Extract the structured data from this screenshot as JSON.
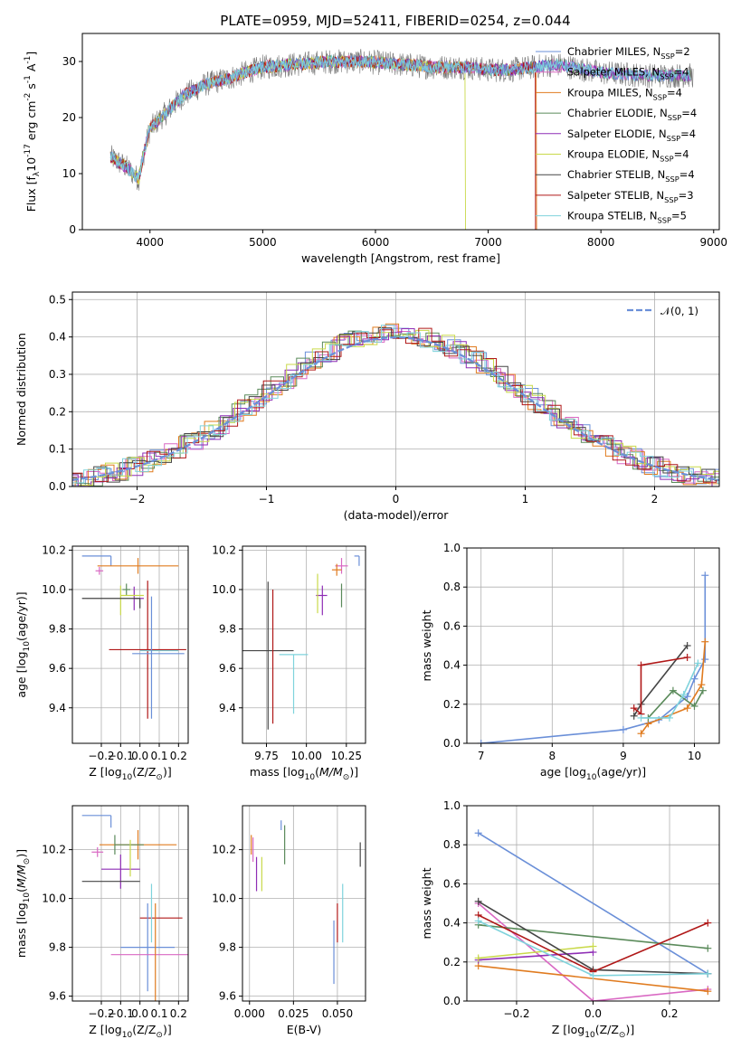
{
  "colors": [
    "#6a8fd8",
    "#d968c3",
    "#e07b1f",
    "#5a8a5a",
    "#8e2db5",
    "#c9d94a",
    "#454545",
    "#b01818",
    "#7fd3dc"
  ],
  "chart_data": [
    {
      "id": "spectrum",
      "type": "line",
      "title": "PLATE=0959, MJD=52411, FIBERID=0254, z=0.044",
      "xlabel": "wavelength [Angstrom, rest frame]",
      "ylabel": "Flux [f$_\\lambda$10$^{-17}$ erg cm$^{-2}$ s$^{-1}$ A$^{-1}$]",
      "xlim": [
        3400,
        9050
      ],
      "ylim": [
        0,
        35
      ],
      "xticks": [
        "4000",
        "5000",
        "6000",
        "7000",
        "8000",
        "9000"
      ],
      "yticks": [
        "0",
        "10",
        "20",
        "30"
      ],
      "continuum": {
        "x": [
          3650,
          3800,
          3900,
          3950,
          4000,
          4150,
          4300,
          4500,
          4700,
          5000,
          5300,
          5600,
          5900,
          6200,
          6500,
          6800,
          7000,
          7200,
          7400,
          7600,
          8000,
          8400,
          8800
        ],
        "y": [
          13,
          11,
          9,
          14,
          18,
          21,
          24,
          26,
          27,
          29,
          29.5,
          30,
          30,
          29.5,
          29,
          29,
          28.5,
          28.5,
          29,
          29.5,
          28,
          27.5,
          27.5
        ]
      },
      "legend": [
        "Chabrier MILES, N$_{SSP}$=2",
        "Salpeter MILES, N$_{SSP}$=4",
        "Kroupa MILES, N$_{SSP}$=4",
        "Chabrier ELODIE, N$_{SSP}$=4",
        "Salpeter ELODIE, N$_{SSP}$=4",
        "Kroupa ELODIE, N$_{SSP}$=4",
        "Chabrier STELIB, N$_{SSP}$=4",
        "Salpeter STELIB, N$_{SSP}$=3",
        "Kroupa STELIB, N$_{SSP}$=5"
      ],
      "legend_position": "upper right"
    },
    {
      "id": "residual-histogram",
      "type": "histogram",
      "xlabel": "(data-model)/error",
      "ylabel": "Normed distribution",
      "xlim": [
        -2.5,
        2.5
      ],
      "ylim": [
        0,
        0.52
      ],
      "xticks": [
        "−2",
        "−1",
        "0",
        "1",
        "2"
      ],
      "yticks": [
        "0.0",
        "0.1",
        "0.2",
        "0.3",
        "0.4",
        "0.5"
      ],
      "bin_width": 0.1,
      "reference_curve_label": "$\\mathcal{N}(0, 1)$",
      "legend_position": "upper right",
      "grid": true
    },
    {
      "id": "age-vs-Z",
      "type": "errorbar",
      "xlabel": "Z [log$_{10}$(Z/Z$_\\odot$)]",
      "ylabel": "age  [log$_{10}$($age/yr$)]",
      "xlim": [
        -0.35,
        0.25
      ],
      "ylim": [
        9.22,
        10.22
      ],
      "xticks": [
        "−0.2",
        "−0.1",
        "0.0",
        "0.1",
        "0.2"
      ],
      "yticks": [
        "9.4",
        "9.6",
        "9.8",
        "10.0",
        "10.2"
      ],
      "grid": true,
      "points": [
        {
          "x": -0.15,
          "y": 10.17,
          "xerr": [
            0.15,
            0.0
          ],
          "yerr": [
            0.05,
            0.0
          ]
        },
        {
          "x": -0.21,
          "y": 10.095,
          "xerr": [
            0.02,
            0.02
          ],
          "yerr": [
            0.02,
            0.02
          ]
        },
        {
          "x": -0.01,
          "y": 10.12,
          "xerr": [
            0.21,
            0.21
          ],
          "yerr": [
            0.04,
            0.04
          ]
        },
        {
          "x": -0.07,
          "y": 10.0,
          "xerr": [
            0.02,
            0.02
          ],
          "yerr": [
            0.03,
            0.03
          ]
        },
        {
          "x": -0.03,
          "y": 9.955,
          "xerr": [
            0.0,
            0.05
          ],
          "yerr": [
            0.06,
            0.06
          ]
        },
        {
          "x": -0.1,
          "y": 9.97,
          "xerr": [
            0.0,
            0.12
          ],
          "yerr": [
            0.1,
            0.05
          ]
        },
        {
          "x": 0.0,
          "y": 9.955,
          "xerr": [
            0.3,
            0.0
          ],
          "yerr": [
            0.05,
            0.0
          ]
        },
        {
          "x": 0.04,
          "y": 9.695,
          "xerr": [
            0.2,
            0.2
          ],
          "yerr": [
            0.35,
            0.35
          ]
        },
        {
          "x": 0.1,
          "y": 9.69,
          "xerr": [
            0.1,
            0.1
          ],
          "yerr": [
            0.0,
            0.0
          ]
        },
        {
          "x": 0.06,
          "y": 9.675,
          "xerr": [
            0.1,
            0.17
          ],
          "yerr": [
            0.33,
            0.29
          ]
        }
      ]
    },
    {
      "id": "age-vs-mass",
      "type": "errorbar",
      "xlabel": "mass [log$_{10}$($M/M_\\odot$)]",
      "ylabel": "",
      "xlim": [
        9.6,
        10.37
      ],
      "ylim": [
        9.22,
        10.22
      ],
      "xticks": [
        "9.75",
        "10.00",
        "10.25"
      ],
      "yticks": [
        "9.4",
        "9.6",
        "9.8",
        "10.0",
        "10.2"
      ],
      "grid": true,
      "points": [
        {
          "x": 10.33,
          "y": 10.17,
          "xerr": [
            0.03,
            0.0
          ],
          "yerr": [
            0.05,
            0.0
          ]
        },
        {
          "x": 10.22,
          "y": 10.12,
          "xerr": [
            0.04,
            0.04
          ],
          "yerr": [
            0.04,
            0.04
          ]
        },
        {
          "x": 10.19,
          "y": 10.1,
          "xerr": [
            0.03,
            0.03
          ],
          "yerr": [
            0.03,
            0.03
          ]
        },
        {
          "x": 10.22,
          "y": 9.97,
          "xerr": [
            0.0,
            0.0
          ],
          "yerr": [
            0.06,
            0.06
          ]
        },
        {
          "x": 10.1,
          "y": 9.97,
          "xerr": [
            0.04,
            0.03
          ],
          "yerr": [
            0.1,
            0.05
          ]
        },
        {
          "x": 10.07,
          "y": 9.96,
          "xerr": [
            0.0,
            0.0
          ],
          "yerr": [
            0.08,
            0.12
          ]
        },
        {
          "x": 9.76,
          "y": 9.69,
          "xerr": [
            0.16,
            0.16
          ],
          "yerr": [
            0.4,
            0.35
          ]
        },
        {
          "x": 9.79,
          "y": 9.7,
          "xerr": [
            0.0,
            0.0
          ],
          "yerr": [
            0.38,
            0.3
          ]
        },
        {
          "x": 9.92,
          "y": 9.67,
          "xerr": [
            0.09,
            0.09
          ],
          "yerr": [
            0.3,
            0.0
          ]
        }
      ]
    },
    {
      "id": "mass-weight-vs-age",
      "type": "line",
      "xlabel": "age  [log$_{10}$($age/yr$)]",
      "ylabel": "mass weight",
      "xlim": [
        6.8,
        10.35
      ],
      "ylim": [
        0,
        1.0
      ],
      "xticks": [
        "7",
        "8",
        "9",
        "10"
      ],
      "yticks": [
        "0.0",
        "0.2",
        "0.4",
        "0.6",
        "0.8",
        "1.0"
      ],
      "grid": true,
      "series": [
        {
          "x": [
            7.0,
            9.0,
            9.5,
            9.9,
            10.0,
            10.15,
            10.15
          ],
          "y": [
            0.0,
            0.07,
            0.12,
            0.24,
            0.33,
            0.43,
            0.86
          ]
        },
        {
          "x": [
            9.25,
            9.35,
            9.9,
            10.1,
            10.15
          ],
          "y": [
            0.05,
            0.1,
            0.18,
            0.3,
            0.52
          ]
        },
        {
          "x": [
            9.35,
            9.7,
            10.0,
            10.12
          ],
          "y": [
            0.13,
            0.27,
            0.19,
            0.27
          ]
        },
        {
          "x": [
            9.15,
            9.25,
            9.9
          ],
          "y": [
            0.14,
            0.2,
            0.5
          ]
        },
        {
          "x": [
            9.15,
            9.25,
            9.25,
            9.9
          ],
          "y": [
            0.18,
            0.15,
            0.4,
            0.44
          ]
        },
        {
          "x": [
            9.25,
            9.65,
            9.85,
            10.05
          ],
          "y": [
            0.13,
            0.13,
            0.25,
            0.41
          ]
        }
      ]
    },
    {
      "id": "mass-vs-Z",
      "type": "errorbar",
      "xlabel": "Z [log$_{10}$(Z/Z$_\\odot$)]",
      "ylabel": "mass [log$_{10}$($M/M_\\odot$)]",
      "xlim": [
        -0.35,
        0.25
      ],
      "ylim": [
        9.58,
        10.38
      ],
      "xticks": [
        "−0.2",
        "−0.1",
        "0.0",
        "0.1",
        "0.2"
      ],
      "yticks": [
        "9.6",
        "9.8",
        "10.0",
        "10.2"
      ],
      "grid": true,
      "points": [
        {
          "x": -0.15,
          "y": 10.34,
          "xerr": [
            0.15,
            0.0
          ],
          "yerr": [
            0.05,
            0.0
          ]
        },
        {
          "x": -0.22,
          "y": 10.19,
          "xerr": [
            0.03,
            0.03
          ],
          "yerr": [
            0.02,
            0.02
          ]
        },
        {
          "x": -0.01,
          "y": 10.22,
          "xerr": [
            0.2,
            0.2
          ],
          "yerr": [
            0.06,
            0.06
          ]
        },
        {
          "x": -0.13,
          "y": 10.22,
          "xerr": [
            0.0,
            0.15
          ],
          "yerr": [
            0.04,
            0.04
          ]
        },
        {
          "x": -0.1,
          "y": 10.12,
          "xerr": [
            0.1,
            0.1
          ],
          "yerr": [
            0.08,
            0.06
          ]
        },
        {
          "x": -0.05,
          "y": 10.16,
          "xerr": [
            0.0,
            0.0
          ],
          "yerr": [
            0.07,
            0.08
          ]
        },
        {
          "x": 0.0,
          "y": 10.07,
          "xerr": [
            0.3,
            0.0
          ],
          "yerr": [
            0.0,
            0.0
          ]
        },
        {
          "x": 0.1,
          "y": 9.92,
          "xerr": [
            0.1,
            0.12
          ],
          "yerr": [
            0.0,
            0.0
          ]
        },
        {
          "x": 0.06,
          "y": 9.92,
          "xerr": [
            0.0,
            0.0
          ],
          "yerr": [
            0.1,
            0.14
          ]
        },
        {
          "x": 0.04,
          "y": 9.8,
          "xerr": [
            0.14,
            0.14
          ],
          "yerr": [
            0.18,
            0.18
          ]
        },
        {
          "x": 0.05,
          "y": 9.77,
          "xerr": [
            0.2,
            0.2
          ],
          "yerr": [
            0.0,
            0.0
          ]
        },
        {
          "x": 0.08,
          "y": 9.78,
          "xerr": [
            0.0,
            0.0
          ],
          "yerr": [
            0.2,
            0.2
          ]
        }
      ]
    },
    {
      "id": "mass-vs-ebv",
      "type": "errorbar",
      "xlabel": "E(B-V)",
      "ylabel": "",
      "xlim": [
        -0.004,
        0.066
      ],
      "ylim": [
        9.58,
        10.38
      ],
      "xticks": [
        "0.000",
        "0.025",
        "0.050"
      ],
      "yticks": [
        "9.6",
        "9.8",
        "10.0",
        "10.2"
      ],
      "grid": true,
      "points": [
        {
          "x": 0.018,
          "y": 10.3,
          "yerr": [
            0.02,
            0.02
          ]
        },
        {
          "x": 0.002,
          "y": 10.2,
          "yerr": [
            0.05,
            0.05
          ]
        },
        {
          "x": 0.001,
          "y": 10.22,
          "yerr": [
            0.04,
            0.04
          ]
        },
        {
          "x": 0.02,
          "y": 10.22,
          "yerr": [
            0.08,
            0.08
          ]
        },
        {
          "x": 0.004,
          "y": 10.1,
          "yerr": [
            0.07,
            0.07
          ]
        },
        {
          "x": 0.007,
          "y": 10.1,
          "yerr": [
            0.07,
            0.07
          ]
        },
        {
          "x": 0.063,
          "y": 10.18,
          "yerr": [
            0.05,
            0.05
          ]
        },
        {
          "x": 0.05,
          "y": 9.9,
          "yerr": [
            0.08,
            0.08
          ]
        },
        {
          "x": 0.053,
          "y": 9.94,
          "yerr": [
            0.12,
            0.12
          ]
        },
        {
          "x": 0.048,
          "y": 9.78,
          "yerr": [
            0.13,
            0.13
          ]
        }
      ]
    },
    {
      "id": "mass-weight-vs-Z",
      "type": "line",
      "xlabel": "Z [log$_{10}$(Z/Z$_\\odot$)]",
      "ylabel": "mass weight",
      "xlim": [
        -0.33,
        0.33
      ],
      "ylim": [
        0,
        1.0
      ],
      "xticks": [
        "−0.2",
        "0.0",
        "0.2"
      ],
      "yticks": [
        "0.0",
        "0.2",
        "0.4",
        "0.6",
        "0.8",
        "1.0"
      ],
      "grid": true,
      "series": [
        {
          "x": [
            -0.3,
            0.3
          ],
          "y": [
            0.86,
            0.14
          ]
        },
        {
          "x": [
            -0.3,
            0.0,
            0.3
          ],
          "y": [
            0.5,
            0.0,
            0.06
          ]
        },
        {
          "x": [
            -0.3,
            0.3
          ],
          "y": [
            0.18,
            0.05
          ]
        },
        {
          "x": [
            -0.3,
            0.3
          ],
          "y": [
            0.39,
            0.27
          ]
        },
        {
          "x": [
            -0.3,
            0.0
          ],
          "y": [
            0.21,
            0.25
          ]
        },
        {
          "x": [
            -0.3,
            0.0
          ],
          "y": [
            0.22,
            0.28
          ]
        },
        {
          "x": [
            -0.3,
            0.0,
            0.3
          ],
          "y": [
            0.51,
            0.16,
            0.14
          ]
        },
        {
          "x": [
            -0.3,
            0.0,
            0.3
          ],
          "y": [
            0.44,
            0.15,
            0.4
          ]
        },
        {
          "x": [
            -0.3,
            0.0,
            0.3
          ],
          "y": [
            0.41,
            0.13,
            0.14
          ]
        }
      ]
    }
  ]
}
